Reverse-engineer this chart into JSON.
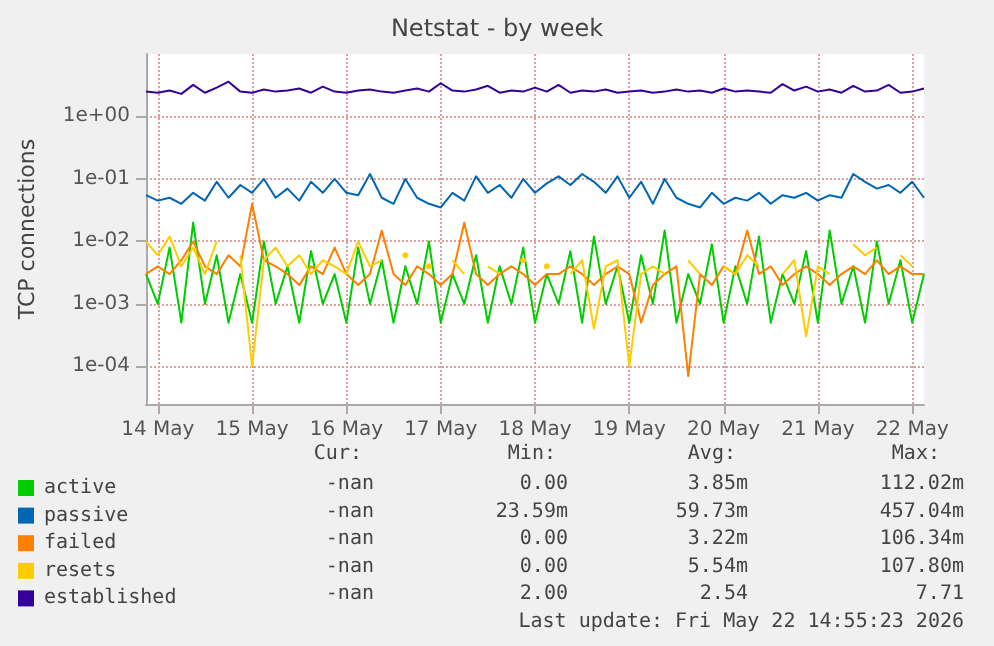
{
  "chart_data": {
    "type": "line",
    "title": "Netstat - by week",
    "ylabel": "TCP connections",
    "log": "y",
    "grid": true,
    "legend": "bottom",
    "marker": "none",
    "line_style": "solid",
    "xlim": [
      "2026-05-14T09:00",
      "2026-05-22T15:00"
    ],
    "xticks": [
      {
        "value": "2026-05-14T12:00",
        "label": "14 May"
      },
      {
        "value": "2026-05-15T12:00",
        "label": "15 May"
      },
      {
        "value": "2026-05-16T12:00",
        "label": "16 May"
      },
      {
        "value": "2026-05-17T12:00",
        "label": "17 May"
      },
      {
        "value": "2026-05-18T12:00",
        "label": "18 May"
      },
      {
        "value": "2026-05-19T12:00",
        "label": "19 May"
      },
      {
        "value": "2026-05-20T12:00",
        "label": "20 May"
      },
      {
        "value": "2026-05-21T12:00",
        "label": "21 May"
      },
      {
        "value": "2026-05-22T12:00",
        "label": "22 May"
      }
    ],
    "ylim": [
      2.5e-05,
      10
    ],
    "yticks": [
      {
        "value": 0.0001,
        "label": "1e-04"
      },
      {
        "value": 0.001,
        "label": "1e-03"
      },
      {
        "value": 0.01,
        "label": "1e-02"
      },
      {
        "value": 0.1,
        "label": "1e-01"
      },
      {
        "value": 1,
        "label": "1e+00"
      }
    ],
    "x": [
      "2026-05-14T09:00",
      "2026-05-14T12:00",
      "2026-05-14T15:00",
      "2026-05-14T18:00",
      "2026-05-14T21:00",
      "2026-05-15T00:00",
      "2026-05-15T03:00",
      "2026-05-15T06:00",
      "2026-05-15T09:00",
      "2026-05-15T12:00",
      "2026-05-15T15:00",
      "2026-05-15T18:00",
      "2026-05-15T21:00",
      "2026-05-16T00:00",
      "2026-05-16T03:00",
      "2026-05-16T06:00",
      "2026-05-16T09:00",
      "2026-05-16T12:00",
      "2026-05-16T15:00",
      "2026-05-16T18:00",
      "2026-05-16T21:00",
      "2026-05-17T00:00",
      "2026-05-17T03:00",
      "2026-05-17T06:00",
      "2026-05-17T09:00",
      "2026-05-17T12:00",
      "2026-05-17T15:00",
      "2026-05-17T18:00",
      "2026-05-17T21:00",
      "2026-05-18T00:00",
      "2026-05-18T03:00",
      "2026-05-18T06:00",
      "2026-05-18T09:00",
      "2026-05-18T12:00",
      "2026-05-18T15:00",
      "2026-05-18T18:00",
      "2026-05-18T21:00",
      "2026-05-19T00:00",
      "2026-05-19T03:00",
      "2026-05-19T06:00",
      "2026-05-19T09:00",
      "2026-05-19T12:00",
      "2026-05-19T15:00",
      "2026-05-19T18:00",
      "2026-05-19T21:00",
      "2026-05-20T00:00",
      "2026-05-20T03:00",
      "2026-05-20T06:00",
      "2026-05-20T09:00",
      "2026-05-20T12:00",
      "2026-05-20T15:00",
      "2026-05-20T18:00",
      "2026-05-20T21:00",
      "2026-05-21T00:00",
      "2026-05-21T03:00",
      "2026-05-21T06:00",
      "2026-05-21T09:00",
      "2026-05-21T12:00",
      "2026-05-21T15:00",
      "2026-05-21T18:00",
      "2026-05-21T21:00",
      "2026-05-22T00:00",
      "2026-05-22T03:00",
      "2026-05-22T06:00",
      "2026-05-22T09:00",
      "2026-05-22T12:00",
      "2026-05-22T15:00"
    ],
    "series": [
      {
        "name": "active",
        "color": "#00cc00",
        "values": [
          0.003,
          0.001,
          0.008,
          0.0005,
          0.02,
          0.001,
          0.006,
          0.0005,
          0.003,
          0.0005,
          0.01,
          0.001,
          0.004,
          0.0005,
          0.007,
          0.001,
          0.003,
          0.0005,
          0.008,
          0.001,
          0.005,
          0.0005,
          0.004,
          0.001,
          0.01,
          0.0005,
          0.003,
          0.001,
          0.006,
          0.0005,
          0.004,
          0.001,
          0.008,
          0.0005,
          0.003,
          0.001,
          0.007,
          0.0005,
          0.012,
          0.001,
          0.004,
          0.0005,
          0.006,
          0.001,
          0.015,
          0.0005,
          0.003,
          0.001,
          0.009,
          0.0005,
          0.004,
          0.001,
          0.012,
          0.0005,
          0.003,
          0.001,
          0.007,
          0.0005,
          0.015,
          0.001,
          0.004,
          0.0005,
          0.01,
          0.001,
          0.005,
          0.0005,
          0.003
        ]
      },
      {
        "name": "passive",
        "color": "#0066b3",
        "values": [
          0.055,
          0.045,
          0.05,
          0.04,
          0.06,
          0.045,
          0.09,
          0.05,
          0.08,
          0.06,
          0.1,
          0.05,
          0.07,
          0.045,
          0.09,
          0.06,
          0.1,
          0.06,
          0.055,
          0.12,
          0.05,
          0.04,
          0.1,
          0.05,
          0.04,
          0.035,
          0.06,
          0.045,
          0.11,
          0.06,
          0.08,
          0.05,
          0.1,
          0.06,
          0.085,
          0.11,
          0.08,
          0.12,
          0.09,
          0.06,
          0.11,
          0.05,
          0.09,
          0.04,
          0.1,
          0.05,
          0.04,
          0.035,
          0.06,
          0.04,
          0.05,
          0.045,
          0.06,
          0.04,
          0.055,
          0.05,
          0.06,
          0.045,
          0.055,
          0.05,
          0.12,
          0.09,
          0.07,
          0.08,
          0.06,
          0.09,
          0.05
        ]
      },
      {
        "name": "failed",
        "color": "#ff8000",
        "values": [
          0.003,
          0.004,
          0.003,
          0.005,
          0.01,
          0.004,
          0.003,
          0.006,
          0.004,
          0.04,
          0.005,
          0.004,
          0.003,
          0.002,
          0.004,
          0.003,
          0.008,
          0.003,
          0.002,
          0.003,
          0.015,
          0.003,
          0.002,
          0.004,
          0.003,
          0.002,
          0.003,
          0.02,
          0.003,
          0.002,
          0.003,
          0.004,
          0.003,
          0.002,
          0.003,
          0.003,
          0.004,
          0.003,
          0.002,
          0.003,
          0.004,
          0.003,
          0.0005,
          0.002,
          0.003,
          0.004,
          7e-05,
          0.003,
          0.002,
          0.004,
          0.003,
          0.015,
          0.003,
          0.004,
          0.002,
          0.003,
          0.004,
          0.003,
          0.002,
          0.003,
          0.004,
          0.003,
          0.005,
          0.003,
          0.004,
          0.003,
          0.003
        ]
      },
      {
        "name": "resets",
        "color": "#ffcc00",
        "values": [
          0.01,
          0.006,
          0.012,
          0.004,
          0.008,
          0.003,
          0.01,
          null,
          0.006,
          0.0001,
          0.005,
          0.008,
          0.004,
          0.006,
          0.003,
          0.005,
          0.004,
          0.003,
          0.01,
          0.004,
          0.005,
          null,
          0.006,
          null,
          0.004,
          null,
          0.005,
          0.003,
          null,
          0.004,
          0.003,
          null,
          0.005,
          null,
          0.004,
          null,
          0.003,
          0.005,
          0.0004,
          0.004,
          0.005,
          0.0001,
          0.003,
          0.004,
          0.003,
          null,
          0.005,
          0.003,
          null,
          0.004,
          0.003,
          0.006,
          0.004,
          null,
          0.003,
          0.005,
          0.0003,
          0.004,
          0.003,
          null,
          0.009,
          0.006,
          0.008,
          null,
          0.006,
          0.004,
          null
        ]
      },
      {
        "name": "established",
        "color": "#330099",
        "values": [
          2.5,
          2.4,
          2.6,
          2.3,
          3.2,
          2.4,
          2.9,
          3.6,
          2.5,
          2.4,
          2.7,
          2.5,
          2.6,
          2.8,
          2.4,
          3.0,
          2.5,
          2.4,
          2.6,
          2.7,
          2.5,
          2.4,
          2.6,
          2.8,
          2.5,
          3.4,
          2.6,
          2.5,
          2.7,
          3.1,
          2.4,
          2.6,
          2.5,
          2.9,
          2.5,
          3.2,
          2.4,
          2.6,
          2.5,
          2.7,
          2.4,
          2.5,
          2.6,
          2.4,
          2.5,
          2.7,
          2.5,
          2.6,
          2.4,
          2.8,
          2.5,
          2.6,
          2.5,
          2.4,
          3.3,
          2.6,
          3.0,
          2.5,
          2.7,
          2.4,
          3.1,
          2.5,
          2.6,
          3.2,
          2.4,
          2.5,
          2.8
        ]
      }
    ],
    "annotations": [
      "Cur:",
      "Min:",
      "Avg:",
      "Max:",
      "-nan",
      "0.00",
      "3.85m",
      "112.02m",
      "-nan",
      "23.59m",
      "59.73m",
      "457.04m",
      "-nan",
      "0.00",
      "3.22m",
      "106.34m",
      "-nan",
      "0.00",
      "5.54m",
      "107.80m",
      "-nan",
      "2.00",
      "2.54",
      "7.71",
      "Last update: Fri May 22 14:55:23 2026"
    ]
  }
}
